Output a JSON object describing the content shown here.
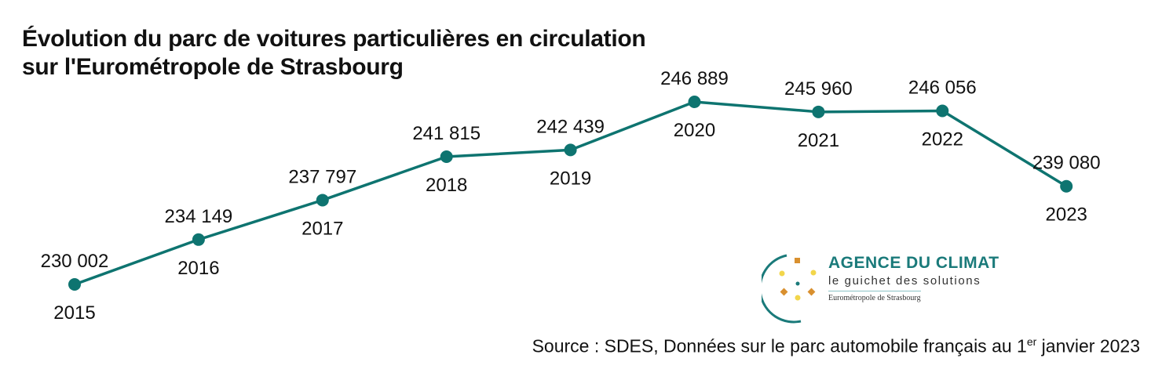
{
  "chart_data": {
    "type": "line",
    "title": "Évolution du parc de voitures particulières en circulation",
    "title_line2": "sur l'Eurométropole de Strasbourg",
    "categories": [
      "2015",
      "2016",
      "2017",
      "2018",
      "2019",
      "2020",
      "2021",
      "2022",
      "2023"
    ],
    "values": [
      230002,
      234149,
      237797,
      241815,
      242439,
      246889,
      245960,
      246056,
      239080
    ],
    "value_labels": [
      "230 002",
      "234 149",
      "237 797",
      "241 815",
      "242 439",
      "246 889",
      "245 960",
      "246 056",
      "239 080"
    ],
    "xlabel": "",
    "ylabel": "",
    "ylim": [
      230002,
      246889
    ],
    "grid": false,
    "line_color": "#0e7470"
  },
  "source": {
    "text": "Source : SDES, Données sur le parc automobile français au 1",
    "sup": "er",
    "suffix": " janvier 2023"
  },
  "logo": {
    "name": "AGENCE DU CLIMAT",
    "tagline": "le guichet des solutions",
    "sub": "Eurométropole de Strasbourg",
    "colors": {
      "teal": "#1a7a7a",
      "yellow": "#f2d64b",
      "orange": "#d9902f"
    }
  }
}
